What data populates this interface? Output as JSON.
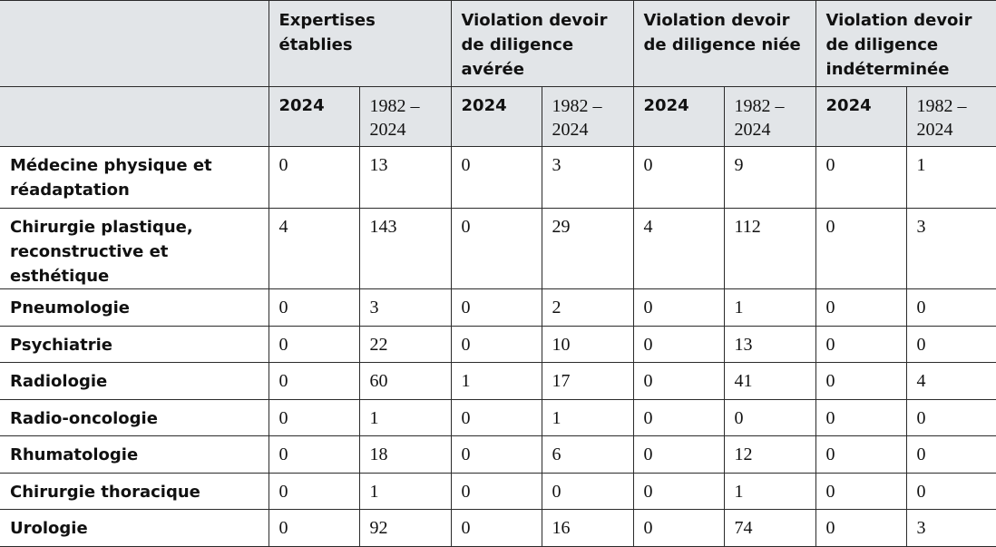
{
  "header": {
    "corner": "",
    "groups": [
      "Expertises établies",
      "Violation devoir de diligence avérée",
      "Violation devoir de diligence niée",
      "Violation devoir de diligence indéterminée"
    ],
    "year": "2024",
    "range_line1": "1982 –",
    "range_line2": "2024"
  },
  "rows": [
    {
      "label": "Médecine physique et réadaptation",
      "values": [
        "0",
        "13",
        "0",
        "3",
        "0",
        "9",
        "0",
        "1"
      ]
    },
    {
      "label": "Chirurgie plastique, reconstructive et esthétique",
      "values": [
        "4",
        "143",
        "0",
        "29",
        "4",
        "112",
        "0",
        "3"
      ]
    },
    {
      "label": "Pneumologie",
      "values": [
        "0",
        "3",
        "0",
        "2",
        "0",
        "1",
        "0",
        "0"
      ]
    },
    {
      "label": "Psychiatrie",
      "values": [
        "0",
        "22",
        "0",
        "10",
        "0",
        "13",
        "0",
        "0"
      ]
    },
    {
      "label": "Radiologie",
      "values": [
        "0",
        "60",
        "1",
        "17",
        "0",
        "41",
        "0",
        "4"
      ]
    },
    {
      "label": "Radio-oncologie",
      "values": [
        "0",
        "1",
        "0",
        "1",
        "0",
        "0",
        "0",
        "0"
      ]
    },
    {
      "label": "Rhumatologie",
      "values": [
        "0",
        "18",
        "0",
        "6",
        "0",
        "12",
        "0",
        "0"
      ]
    },
    {
      "label": "Chirurgie thoracique",
      "values": [
        "0",
        "1",
        "0",
        "0",
        "0",
        "1",
        "0",
        "0"
      ]
    },
    {
      "label": "Urologie",
      "values": [
        "0",
        "92",
        "0",
        "16",
        "0",
        "74",
        "0",
        "3"
      ]
    }
  ]
}
